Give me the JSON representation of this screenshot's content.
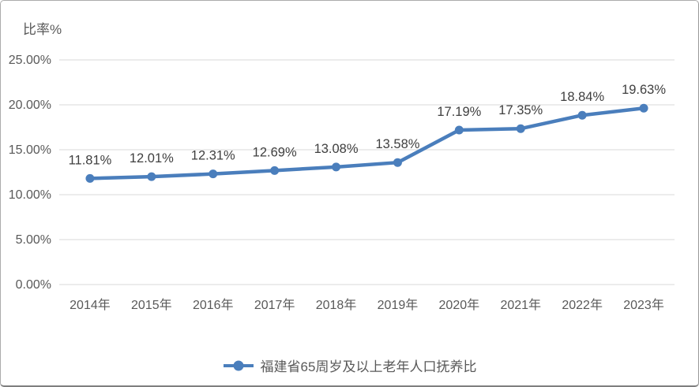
{
  "page": {
    "axis_unit_label": "比率%"
  },
  "chart_data": {
    "type": "line",
    "title": "",
    "ylabel": "比率%",
    "xlabel": "",
    "categories": [
      "2014年",
      "2015年",
      "2016年",
      "2017年",
      "2018年",
      "2019年",
      "2020年",
      "2021年",
      "2022年",
      "2023年"
    ],
    "series": [
      {
        "name": "福建省65周岁及以上老年人口抚养比",
        "values": [
          11.81,
          12.01,
          12.31,
          12.69,
          13.08,
          13.58,
          17.19,
          17.35,
          18.84,
          19.63
        ],
        "color": "#4A7EBC"
      }
    ],
    "data_labels": [
      "11.81%",
      "12.01%",
      "12.31%",
      "12.69%",
      "13.08%",
      "13.58%",
      "17.19%",
      "17.35%",
      "18.84%",
      "19.63%"
    ],
    "y_ticks": [
      "0.00%",
      "5.00%",
      "10.00%",
      "15.00%",
      "20.00%",
      "25.00%"
    ],
    "ylim": [
      0,
      25
    ],
    "y_tick_step": 5,
    "grid": true,
    "legend_position": "bottom",
    "legend_marker": "line-with-circle"
  },
  "colors": {
    "line": "#4A7EBC",
    "gridline": "#D9D9D9",
    "axis_text": "#595959",
    "data_label_text": "#3F3F3F"
  }
}
